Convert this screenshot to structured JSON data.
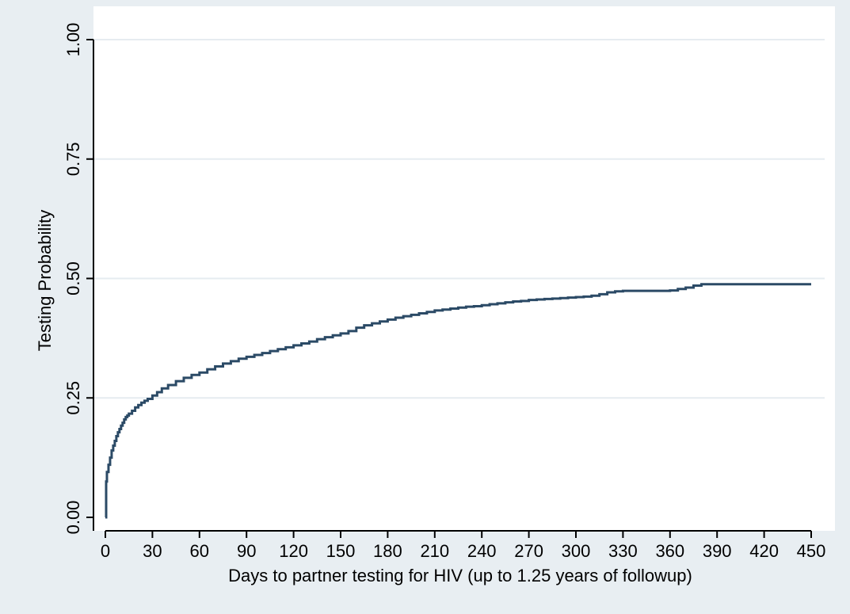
{
  "chart_data": {
    "type": "line",
    "title": "",
    "xlabel": "Days to partner testing for HIV (up to 1.25 years of followup)",
    "ylabel": "Testing Probability",
    "xlim": [
      0,
      450
    ],
    "ylim": [
      0,
      1
    ],
    "x_ticks": [
      "0",
      "30",
      "60",
      "90",
      "120",
      "150",
      "180",
      "210",
      "240",
      "270",
      "300",
      "330",
      "360",
      "390",
      "420",
      "450"
    ],
    "y_ticks": [
      "0.00",
      "0.25",
      "0.50",
      "0.75",
      "1.00"
    ],
    "grid": "horizontal",
    "legend": "none",
    "colors": {
      "line": "#2b4a66",
      "background": "#e8eef2",
      "plot_area": "#ffffff",
      "grid": "#e6ecf0"
    },
    "series": [
      {
        "step": true,
        "x": [
          0,
          0.5,
          1,
          2,
          3,
          4,
          5,
          6,
          7,
          8,
          9,
          10,
          11,
          12,
          13,
          14,
          15,
          17,
          19,
          21,
          23,
          25,
          27,
          30,
          33,
          36,
          40,
          45,
          50,
          55,
          60,
          65,
          70,
          75,
          80,
          85,
          90,
          95,
          100,
          105,
          110,
          115,
          120,
          125,
          130,
          135,
          140,
          145,
          150,
          155,
          160,
          165,
          170,
          175,
          180,
          185,
          190,
          195,
          200,
          205,
          210,
          215,
          220,
          225,
          230,
          235,
          240,
          245,
          250,
          255,
          260,
          265,
          270,
          275,
          280,
          285,
          290,
          295,
          300,
          305,
          310,
          315,
          320,
          325,
          330,
          340,
          350,
          360,
          365,
          370,
          375,
          380,
          390,
          400,
          420,
          450
        ],
        "y": [
          0,
          0.075,
          0.095,
          0.11,
          0.125,
          0.14,
          0.15,
          0.16,
          0.17,
          0.178,
          0.185,
          0.192,
          0.198,
          0.205,
          0.21,
          0.213,
          0.217,
          0.223,
          0.23,
          0.235,
          0.24,
          0.244,
          0.248,
          0.255,
          0.262,
          0.27,
          0.277,
          0.285,
          0.292,
          0.298,
          0.303,
          0.31,
          0.316,
          0.322,
          0.327,
          0.332,
          0.336,
          0.34,
          0.344,
          0.348,
          0.352,
          0.356,
          0.36,
          0.364,
          0.368,
          0.373,
          0.377,
          0.381,
          0.385,
          0.39,
          0.397,
          0.402,
          0.406,
          0.41,
          0.414,
          0.418,
          0.421,
          0.424,
          0.427,
          0.43,
          0.433,
          0.435,
          0.437,
          0.439,
          0.441,
          0.442,
          0.444,
          0.446,
          0.448,
          0.45,
          0.452,
          0.453,
          0.455,
          0.456,
          0.457,
          0.458,
          0.459,
          0.46,
          0.461,
          0.462,
          0.464,
          0.467,
          0.471,
          0.473,
          0.474,
          0.474,
          0.474,
          0.475,
          0.478,
          0.481,
          0.485,
          0.488,
          0.488,
          0.488,
          0.488,
          0.488
        ]
      }
    ]
  }
}
